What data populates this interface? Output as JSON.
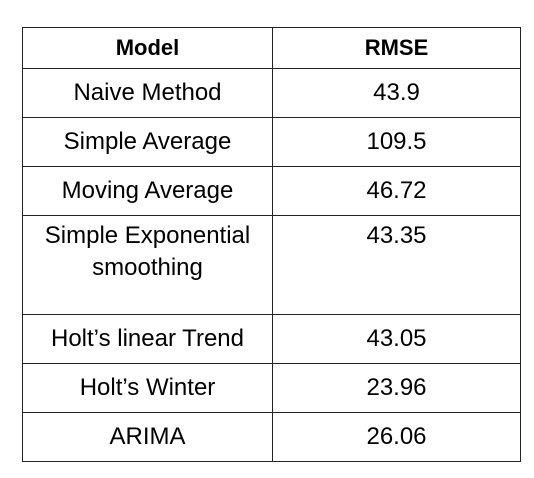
{
  "table": {
    "headers": {
      "model": "Model",
      "rmse": "RMSE"
    },
    "rows": [
      {
        "model_lines": [
          "Naive Method"
        ],
        "rmse": "43.9"
      },
      {
        "model_lines": [
          "Simple Average"
        ],
        "rmse": "109.5"
      },
      {
        "model_lines": [
          "Moving Average"
        ],
        "rmse": "46.72"
      },
      {
        "model_lines": [
          "Simple Exponential",
          "smoothing"
        ],
        "rmse": "43.35"
      },
      {
        "model_lines": [
          "Holt’s linear Trend"
        ],
        "rmse": "43.05"
      },
      {
        "model_lines": [
          "Holt’s Winter"
        ],
        "rmse": "23.96"
      },
      {
        "model_lines": [
          "ARIMA"
        ],
        "rmse": "26.06"
      }
    ]
  }
}
